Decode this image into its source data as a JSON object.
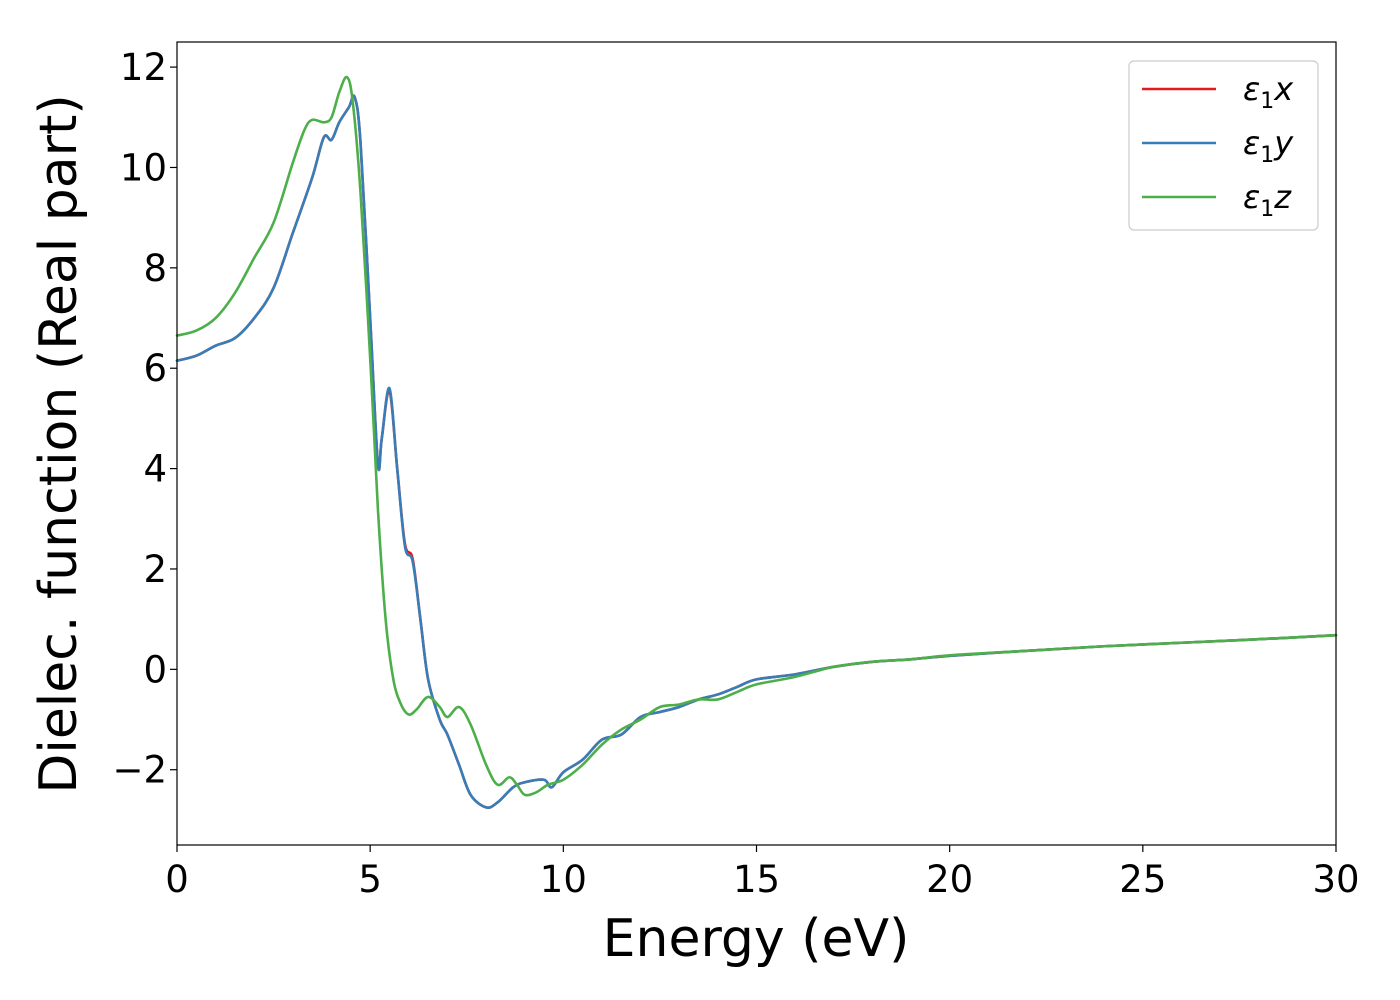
{
  "chart_data": {
    "type": "line",
    "xlabel": "Energy (eV)",
    "ylabel": "Dielec. function (Real part)",
    "xlim": [
      0,
      30
    ],
    "ylim": [
      -3.5,
      12.5
    ],
    "xticks": [
      0,
      5,
      10,
      15,
      20,
      25,
      30
    ],
    "xtick_labels": [
      "0",
      "5",
      "10",
      "15",
      "20",
      "25",
      "30"
    ],
    "yticks": [
      -2,
      0,
      2,
      4,
      6,
      8,
      10,
      12
    ],
    "ytick_labels": [
      "−2",
      "0",
      "2",
      "4",
      "6",
      "8",
      "10",
      "12"
    ],
    "grid": false,
    "legend_position": "top-right",
    "series": [
      {
        "name": "ε1x",
        "legend_base": "ε",
        "legend_sub": "1",
        "legend_tail": "x",
        "color": "#e41a1c",
        "x": [
          0,
          0.5,
          1.0,
          1.5,
          2.0,
          2.5,
          3.0,
          3.5,
          3.8,
          4.0,
          4.2,
          4.45,
          4.6,
          4.75,
          5.0,
          5.2,
          5.3,
          5.5,
          5.7,
          5.9,
          6.1,
          6.3,
          6.5,
          6.8,
          7.0,
          7.3,
          7.6,
          8.0,
          8.3,
          8.7,
          9.0,
          9.5,
          9.7,
          10.0,
          10.5,
          11.0,
          11.5,
          12.0,
          12.5,
          13.0,
          13.5,
          14.0,
          14.5,
          15.0,
          16.0,
          17.0,
          18.0,
          19.0,
          20.0,
          22.0,
          24.0,
          26.0,
          28.0,
          30.0
        ],
        "y": [
          6.15,
          6.25,
          6.45,
          6.6,
          7.0,
          7.6,
          8.7,
          9.8,
          10.6,
          10.55,
          10.9,
          11.2,
          11.4,
          10.5,
          7.0,
          4.1,
          4.6,
          5.55,
          4.0,
          2.5,
          2.2,
          1.0,
          -0.2,
          -1.0,
          -1.3,
          -1.9,
          -2.5,
          -2.75,
          -2.65,
          -2.35,
          -2.25,
          -2.2,
          -2.35,
          -2.05,
          -1.8,
          -1.4,
          -1.3,
          -0.95,
          -0.85,
          -0.75,
          -0.6,
          -0.5,
          -0.35,
          -0.2,
          -0.1,
          0.05,
          0.15,
          0.2,
          0.27,
          0.37,
          0.46,
          0.53,
          0.6,
          0.68
        ]
      },
      {
        "name": "ε1y",
        "legend_base": "ε",
        "legend_sub": "1",
        "legend_tail": "y",
        "color": "#377eb8",
        "x": [
          0,
          0.5,
          1.0,
          1.5,
          2.0,
          2.5,
          3.0,
          3.5,
          3.8,
          4.0,
          4.2,
          4.45,
          4.6,
          4.75,
          5.0,
          5.2,
          5.3,
          5.5,
          5.7,
          5.9,
          6.1,
          6.3,
          6.5,
          6.8,
          7.0,
          7.3,
          7.6,
          8.0,
          8.3,
          8.7,
          9.0,
          9.5,
          9.7,
          10.0,
          10.5,
          11.0,
          11.5,
          12.0,
          12.5,
          13.0,
          13.5,
          14.0,
          14.5,
          15.0,
          16.0,
          17.0,
          18.0,
          19.0,
          20.0,
          22.0,
          24.0,
          26.0,
          28.0,
          30.0
        ],
        "y": [
          6.15,
          6.25,
          6.45,
          6.6,
          7.0,
          7.6,
          8.7,
          9.8,
          10.6,
          10.55,
          10.9,
          11.2,
          11.4,
          10.5,
          7.0,
          4.1,
          4.6,
          5.6,
          4.0,
          2.45,
          2.15,
          1.0,
          -0.2,
          -1.0,
          -1.3,
          -1.9,
          -2.5,
          -2.75,
          -2.65,
          -2.35,
          -2.25,
          -2.2,
          -2.35,
          -2.05,
          -1.8,
          -1.4,
          -1.3,
          -0.95,
          -0.85,
          -0.75,
          -0.6,
          -0.5,
          -0.35,
          -0.2,
          -0.1,
          0.05,
          0.15,
          0.2,
          0.27,
          0.37,
          0.46,
          0.53,
          0.6,
          0.68
        ]
      },
      {
        "name": "ε1z",
        "legend_base": "ε",
        "legend_sub": "1",
        "legend_tail": "z",
        "color": "#4daf4a",
        "x": [
          0,
          0.5,
          1.0,
          1.5,
          2.0,
          2.5,
          3.0,
          3.3,
          3.5,
          3.8,
          4.0,
          4.2,
          4.4,
          4.55,
          4.75,
          5.0,
          5.2,
          5.4,
          5.6,
          5.8,
          6.0,
          6.2,
          6.5,
          6.8,
          7.0,
          7.3,
          7.6,
          8.0,
          8.3,
          8.6,
          8.8,
          9.0,
          9.3,
          9.6,
          10.0,
          10.5,
          11.0,
          11.5,
          12.0,
          12.5,
          13.0,
          13.5,
          14.0,
          14.5,
          15.0,
          16.0,
          17.0,
          18.0,
          19.0,
          20.0,
          22.0,
          24.0,
          26.0,
          28.0,
          30.0
        ],
        "y": [
          6.65,
          6.75,
          7.0,
          7.5,
          8.2,
          8.9,
          10.1,
          10.75,
          10.95,
          10.9,
          11.0,
          11.5,
          11.8,
          11.3,
          9.5,
          6.2,
          3.2,
          1.0,
          -0.2,
          -0.7,
          -0.9,
          -0.8,
          -0.55,
          -0.75,
          -0.95,
          -0.75,
          -1.1,
          -1.9,
          -2.3,
          -2.15,
          -2.3,
          -2.5,
          -2.45,
          -2.3,
          -2.2,
          -1.9,
          -1.5,
          -1.2,
          -1.0,
          -0.75,
          -0.7,
          -0.6,
          -0.6,
          -0.45,
          -0.3,
          -0.15,
          0.05,
          0.15,
          0.2,
          0.28,
          0.37,
          0.46,
          0.53,
          0.6,
          0.68
        ]
      }
    ]
  }
}
